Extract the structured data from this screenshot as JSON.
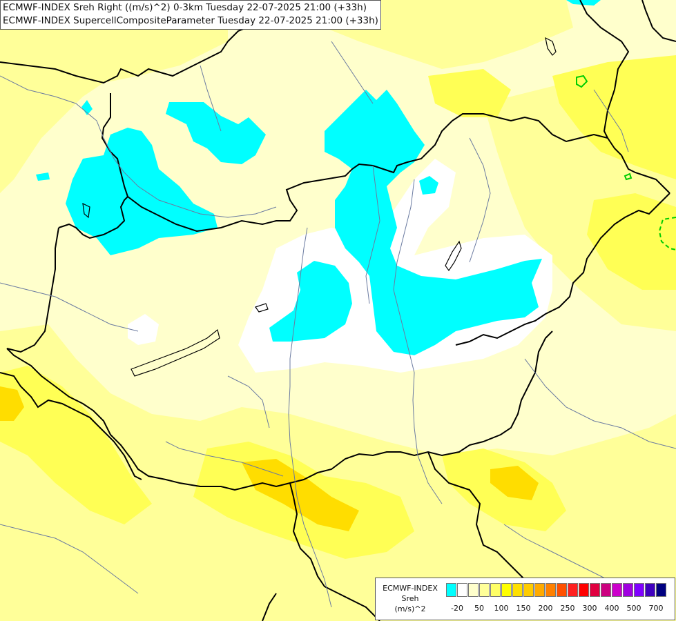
{
  "title": {
    "line1": "ECMWF-INDEX Sreh Right ((m/s)^2) 0-3km Tuesday 22-07-2025 21:00 (+33h)",
    "line2": "ECMWF-INDEX SupercellCompositeParameter Tuesday 22-07-2025 21:00 (+33h)"
  },
  "legend": {
    "source": "ECMWF-INDEX",
    "variable": "Sreh",
    "unit": "(m/s)^2",
    "colors": [
      "#00ffff",
      "#ffffff",
      "#ffffcc",
      "#ffff99",
      "#ffff66",
      "#ffff00",
      "#ffe000",
      "#ffcc00",
      "#ffaa00",
      "#ff8000",
      "#ff5000",
      "#ff2020",
      "#ff0000",
      "#e00040",
      "#cc0080",
      "#cc00cc",
      "#a000e0",
      "#8000ff",
      "#4000c0",
      "#000080"
    ],
    "tick_labels": [
      "-20",
      "50",
      "100",
      "150",
      "200",
      "250",
      "300",
      "400",
      "500",
      "700"
    ]
  }
}
